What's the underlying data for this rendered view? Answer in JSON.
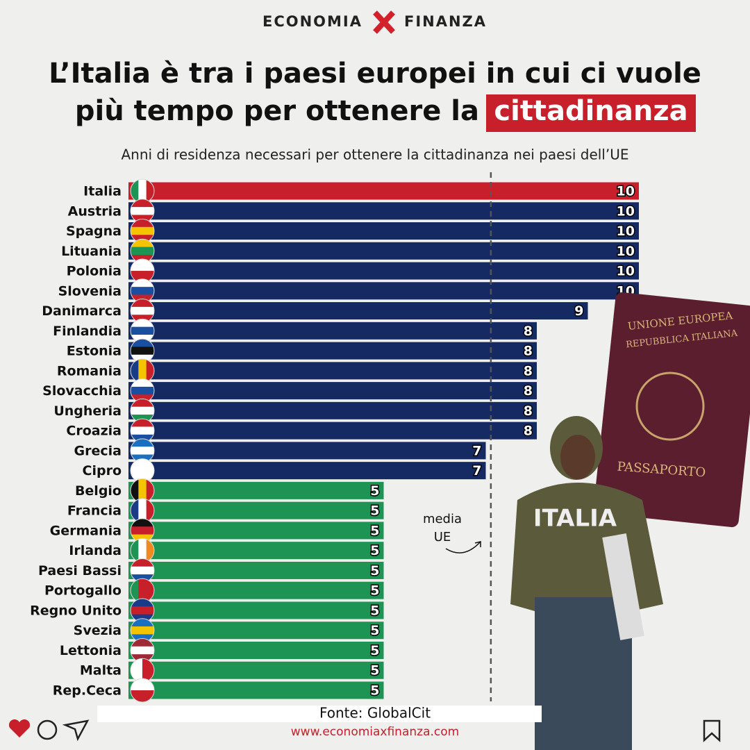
{
  "brand": {
    "left": "ECONOMIA",
    "right": "FINANZA"
  },
  "chart_data": {
    "type": "bar",
    "orientation": "horizontal",
    "title_lines": [
      "L’Italia è tra i paesi europei in cui ci vuole",
      "più tempo per ottenere la"
    ],
    "title_highlight": "cittadinanza",
    "subtitle": "Anni di residenza necessari per ottenere la cittadinanza nei paesi dell’UE",
    "categories": [
      "Italia",
      "Austria",
      "Spagna",
      "Lituania",
      "Polonia",
      "Slovenia",
      "Danimarca",
      "Finlandia",
      "Estonia",
      "Romania",
      "Slovacchia",
      "Ungheria",
      "Croazia",
      "Grecia",
      "Cipro",
      "Belgio",
      "Francia",
      "Germania",
      "Irlanda",
      "Paesi Bassi",
      "Portogallo",
      "Regno Unito",
      "Svezia",
      "Lettonia",
      "Malta",
      "Rep.Ceca"
    ],
    "values": [
      10,
      10,
      10,
      10,
      10,
      10,
      9,
      8,
      8,
      8,
      8,
      8,
      8,
      7,
      7,
      5,
      5,
      5,
      5,
      5,
      5,
      5,
      5,
      5,
      5,
      5
    ],
    "colors": [
      "#c8202b",
      "#152a63",
      "#152a63",
      "#152a63",
      "#152a63",
      "#152a63",
      "#152a63",
      "#152a63",
      "#152a63",
      "#152a63",
      "#152a63",
      "#152a63",
      "#152a63",
      "#152a63",
      "#152a63",
      "#1d9453",
      "#1d9453",
      "#1d9453",
      "#1d9453",
      "#1d9453",
      "#1d9453",
      "#1d9453",
      "#1d9453",
      "#1d9453",
      "#1d9453",
      "#1d9453"
    ],
    "xlim": [
      0,
      10
    ],
    "reference_line": {
      "value": 7.1,
      "label_lines": [
        "media",
        "UE"
      ]
    },
    "source": "Fonte: GlobalCit",
    "website": "www.economiaxfinanza.com"
  },
  "image_texts": {
    "passport_lines": [
      "UNIONE EUROPEA",
      "REPUBBLICA ITALIANA"
    ],
    "passport_bottom": "PASSAPORTO",
    "sweatshirt": "ITALIA"
  }
}
